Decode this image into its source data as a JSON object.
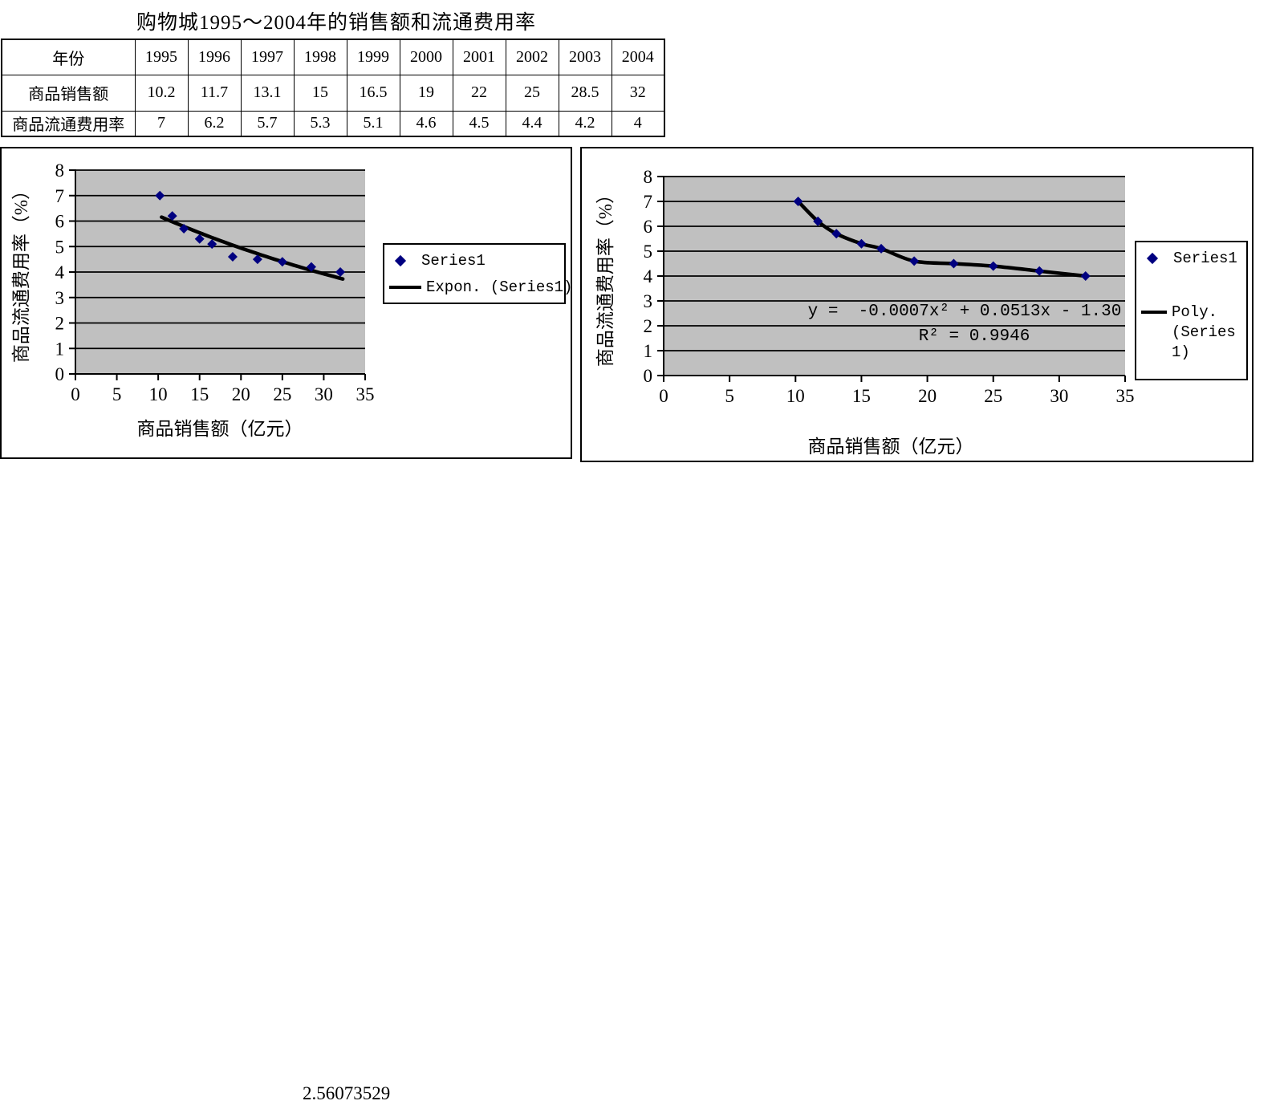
{
  "page_title": "购物城1995～2004年的销售额和流通费用率",
  "table": {
    "corner_label": "年份",
    "years": [
      "1995",
      "1996",
      "1997",
      "1998",
      "1999",
      "2000",
      "2001",
      "2002",
      "2003",
      "2004"
    ],
    "rows": [
      {
        "label": "商品销售额",
        "values": [
          "10.2",
          "11.7",
          "13.1",
          "15",
          "16.5",
          "19",
          "22",
          "25",
          "28.5",
          "32"
        ]
      },
      {
        "label": "商品流通费用率",
        "values": [
          "7",
          "6.2",
          "5.7",
          "5.3",
          "5.1",
          "4.6",
          "4.5",
          "4.4",
          "4.2",
          "4"
        ]
      }
    ]
  },
  "chart_data": [
    {
      "type": "scatter",
      "x": [
        10.2,
        11.7,
        13.1,
        15,
        16.5,
        19,
        22,
        25,
        28.5,
        32
      ],
      "y": [
        7,
        6.2,
        5.7,
        5.3,
        5.1,
        4.6,
        4.5,
        4.4,
        4.2,
        4
      ],
      "series_name": "Series1",
      "xlabel": "商品销售额（亿元）",
      "ylabel": "商品流通费用率（%）",
      "xlim": [
        0,
        35
      ],
      "ylim": [
        0,
        8
      ],
      "xticks": [
        0,
        5,
        10,
        15,
        20,
        25,
        30,
        35
      ],
      "yticks": [
        0,
        1,
        2,
        3,
        4,
        5,
        6,
        7,
        8
      ],
      "grid": "horizontal",
      "plot_bg": "#c0c0c0",
      "marker_color": "#000080",
      "trend_color": "#000000",
      "legend_position": "right",
      "legend": [
        "Series1",
        "Expon. (Series1)"
      ],
      "trendline": {
        "type": "exponential",
        "label": "Expon. (Series1)",
        "a": 7.81,
        "b": -0.0229,
        "x_start": 10.4,
        "x_end": 32.3
      }
    },
    {
      "type": "scatter",
      "x": [
        10.2,
        11.7,
        13.1,
        15,
        16.5,
        19,
        22,
        25,
        28.5,
        32
      ],
      "y": [
        7,
        6.2,
        5.7,
        5.3,
        5.1,
        4.6,
        4.5,
        4.4,
        4.2,
        4
      ],
      "series_name": "Series1",
      "xlabel": "商品销售额（亿元）",
      "ylabel": "商品流通费用率（%）",
      "xlim": [
        0,
        35
      ],
      "ylim": [
        0,
        8
      ],
      "xticks": [
        0,
        5,
        10,
        15,
        20,
        25,
        30,
        35
      ],
      "yticks": [
        0,
        1,
        2,
        3,
        4,
        5,
        6,
        7,
        8
      ],
      "grid": "horizontal",
      "plot_bg": "#c0c0c0",
      "marker_color": "#000080",
      "trend_color": "#000000",
      "legend_position": "right",
      "legend": [
        "Series1",
        "Poly. (Series 1)"
      ],
      "legend_label_lines": [
        "Poly.",
        "(Series",
        "1)"
      ],
      "trendline": {
        "type": "polynomial",
        "label": "Poly. (Series 1)"
      },
      "equation": "y =  -0.0007x² + 0.0513x - 1.30",
      "r_squared": "R² = 0.9946"
    }
  ],
  "footer_value": "2.56073529"
}
